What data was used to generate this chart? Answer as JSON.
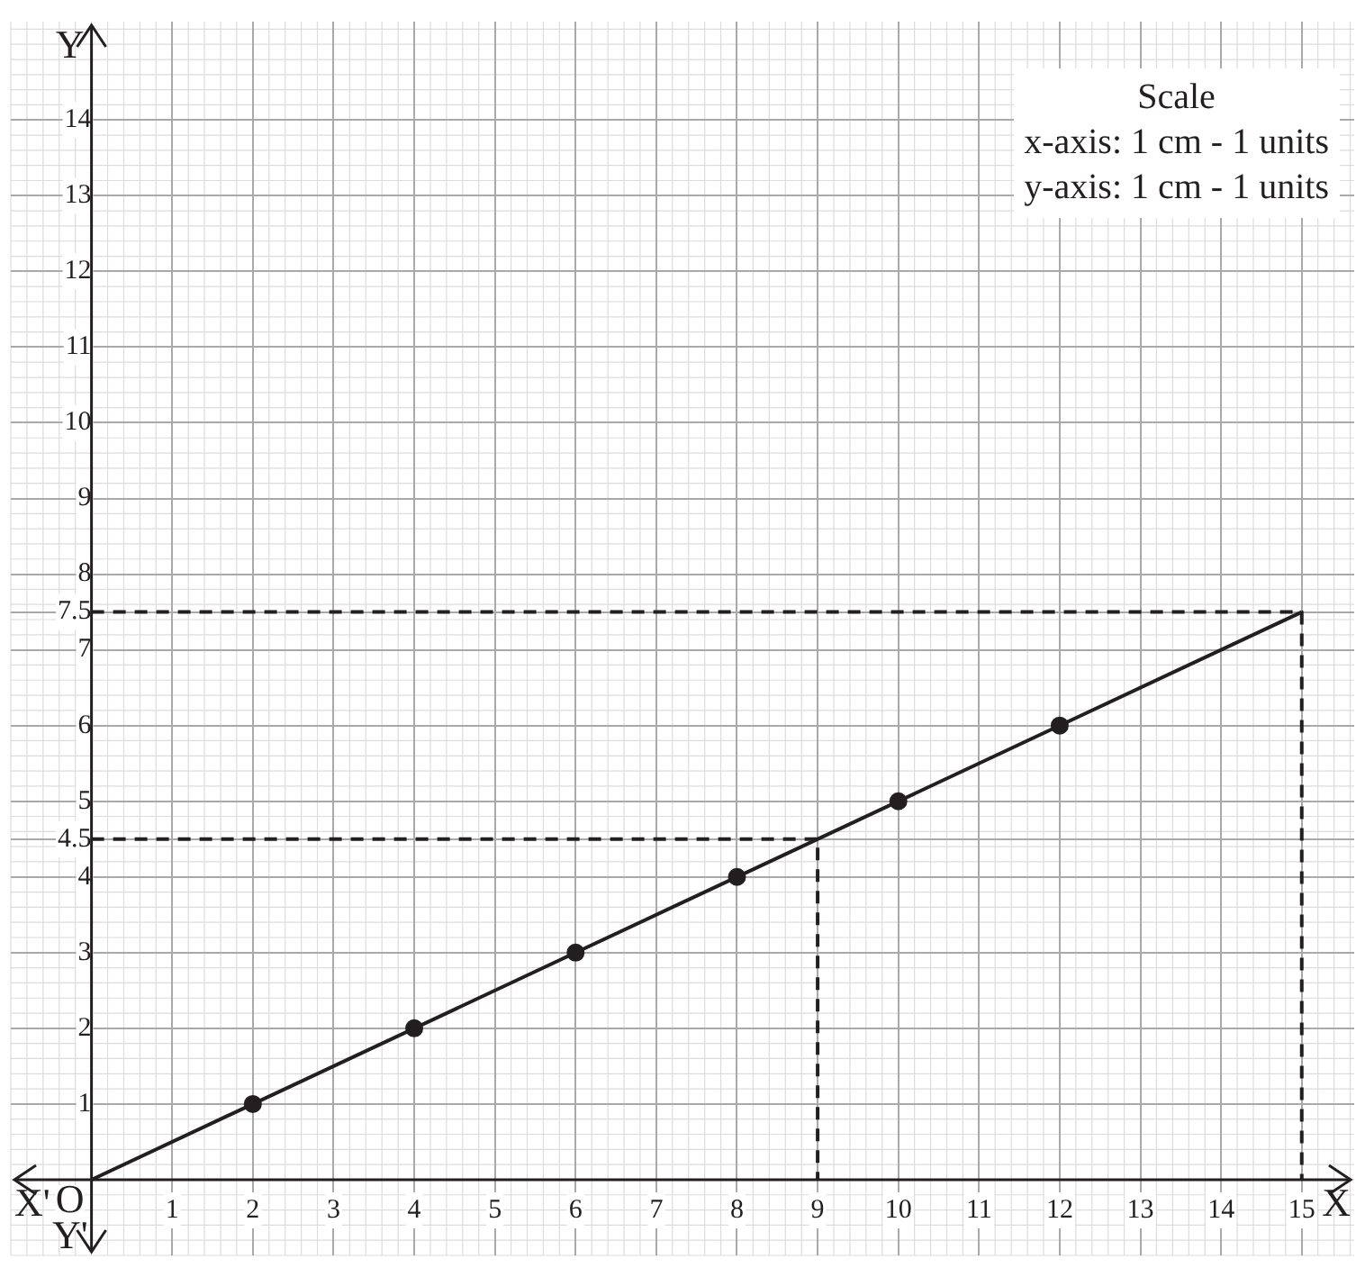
{
  "chart_data": {
    "type": "line",
    "xlabel": "X",
    "ylabel": "Y",
    "annotations": [
      "X'",
      "Y'",
      "O",
      "Scale",
      "x-axis: 1 cm - 1 units",
      "y-axis: 1 cm - 1 units"
    ],
    "xlim": [
      -1,
      15.65
    ],
    "ylim": [
      -1,
      15.3
    ],
    "xticks": [
      1,
      2,
      3,
      4,
      5,
      6,
      7,
      8,
      9,
      10,
      11,
      12,
      13,
      14,
      15
    ],
    "yticks": [
      1,
      2,
      3,
      4,
      4.5,
      5,
      6,
      7,
      7.5,
      8,
      9,
      10,
      11,
      12,
      13,
      14
    ],
    "grid": true,
    "legend": false,
    "series": [
      {
        "type": "line",
        "color": "#231f20",
        "x": [
          0,
          15
        ],
        "values": [
          0,
          7.5
        ],
        "marker": "none",
        "line_style": "solid"
      },
      {
        "type": "scatter",
        "color": "#231f20",
        "x": [
          2,
          4,
          6,
          8,
          10,
          12
        ],
        "values": [
          1,
          2,
          3,
          4,
          5,
          6
        ],
        "marker": "circle"
      },
      {
        "type": "line",
        "color": "#231f20",
        "x": [
          0,
          9,
          9
        ],
        "values": [
          4.5,
          4.5,
          0
        ],
        "marker": "none",
        "line_style": "dashed"
      },
      {
        "type": "line",
        "color": "#231f20",
        "x": [
          0,
          15,
          15
        ],
        "values": [
          7.5,
          7.5,
          0
        ],
        "marker": "none",
        "line_style": "dashed"
      }
    ]
  }
}
